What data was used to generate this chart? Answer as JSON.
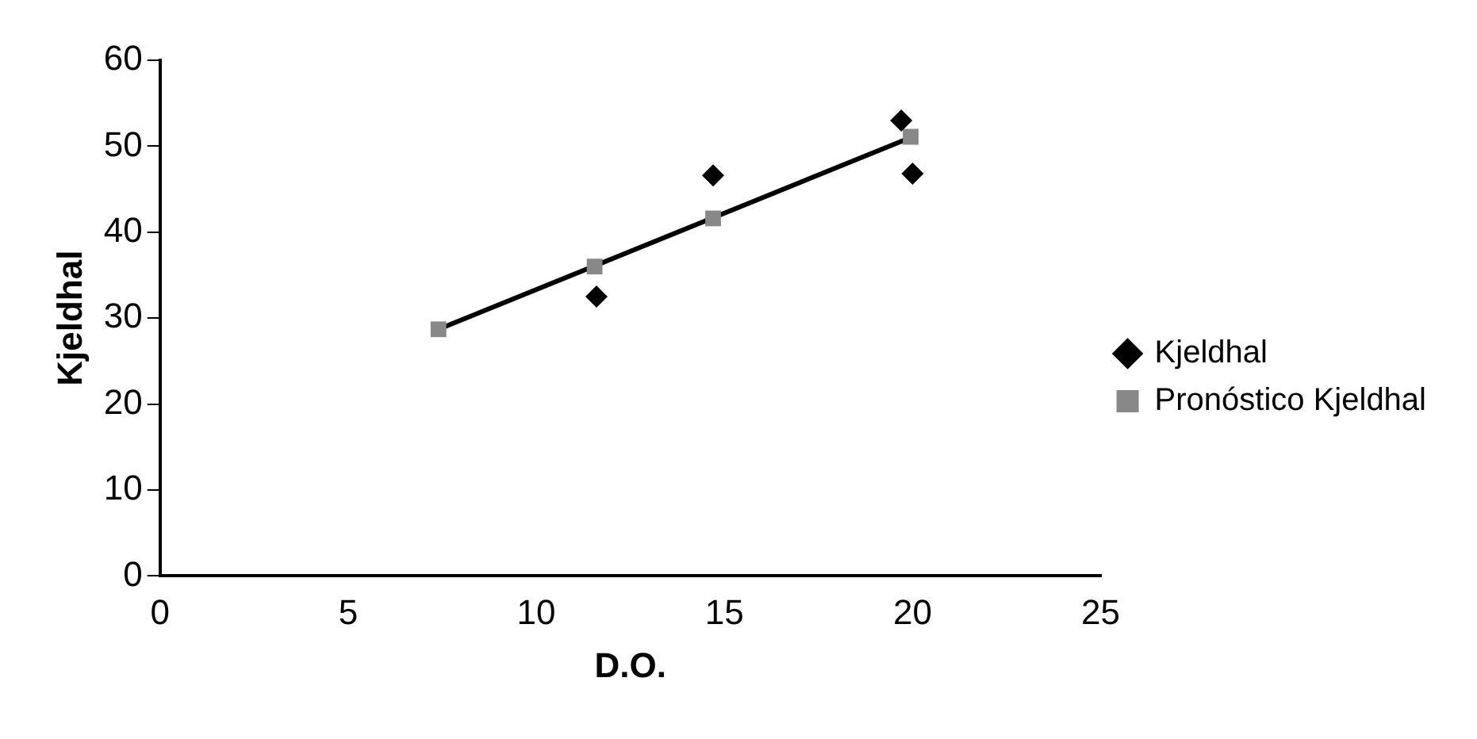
{
  "chart_data": {
    "type": "scatter",
    "xlabel": "D.O.",
    "ylabel": "Kjeldhal",
    "xlim": [
      0,
      25
    ],
    "xticks": [
      0,
      5,
      10,
      15,
      20,
      25
    ],
    "ylim": [
      0,
      60
    ],
    "yticks": [
      0,
      10,
      20,
      30,
      40,
      50,
      60
    ],
    "grid": false,
    "legend": "right",
    "series": [
      {
        "name": "Kjeldhal",
        "color": "#000000",
        "marker": "diamond",
        "x": [
          11.6,
          14.7,
          19.7,
          20.0
        ],
        "values": [
          32.5,
          46.6,
          53,
          46.8
        ]
      },
      {
        "name": "Pronóstico Kjeldhal",
        "color": "#888888",
        "marker": "square",
        "x": [
          7.4,
          11.55,
          14.7,
          19.95
        ],
        "values": [
          28.7,
          36.0,
          41.6,
          51.1
        ]
      },
      {
        "type": "line",
        "color": "#000000",
        "marker": "none",
        "x": [
          7.4,
          20.0
        ],
        "values": [
          28.7,
          51.1
        ]
      }
    ]
  }
}
